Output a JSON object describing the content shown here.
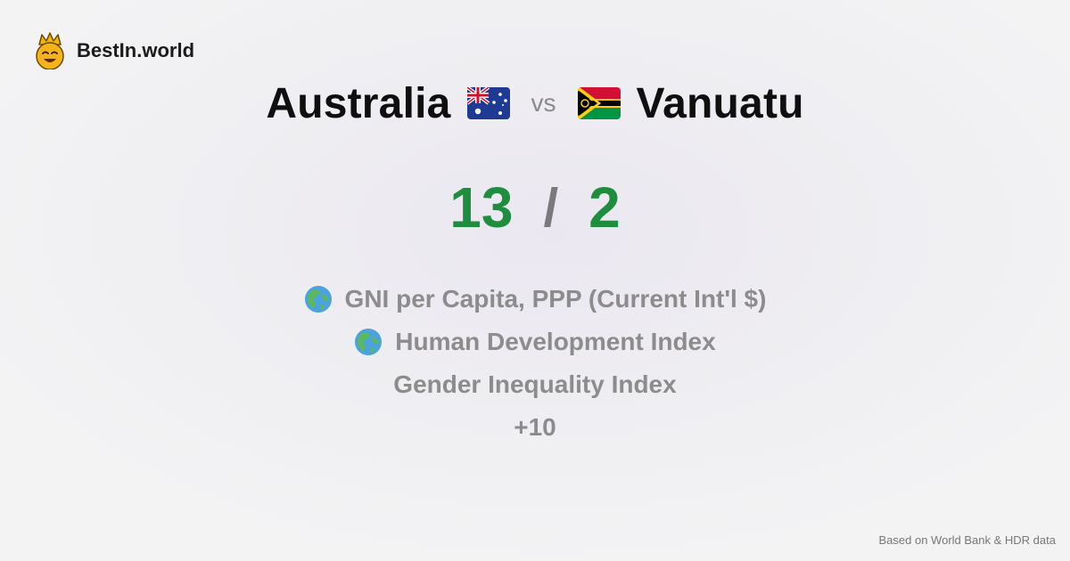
{
  "brand": {
    "name": "BestIn.world",
    "icon": "crowned-smiley-icon"
  },
  "comparison": {
    "left": {
      "name": "Australia",
      "flag": "australia-flag-icon"
    },
    "vs_label": "vs",
    "right": {
      "name": "Vanuatu",
      "flag": "vanuatu-flag-icon"
    }
  },
  "score": {
    "left": "13",
    "separator": "/",
    "right": "2",
    "color": "#1e8e3e"
  },
  "metrics": [
    {
      "label": "GNI per Capita, PPP (Current Int'l $)",
      "icon": "globe-icon"
    },
    {
      "label": "Human Development Index",
      "icon": "globe-icon"
    },
    {
      "label": "Gender Inequality Index",
      "icon": ""
    }
  ],
  "more_label": "+10",
  "footer": {
    "source": "Based on World Bank & HDR data"
  }
}
